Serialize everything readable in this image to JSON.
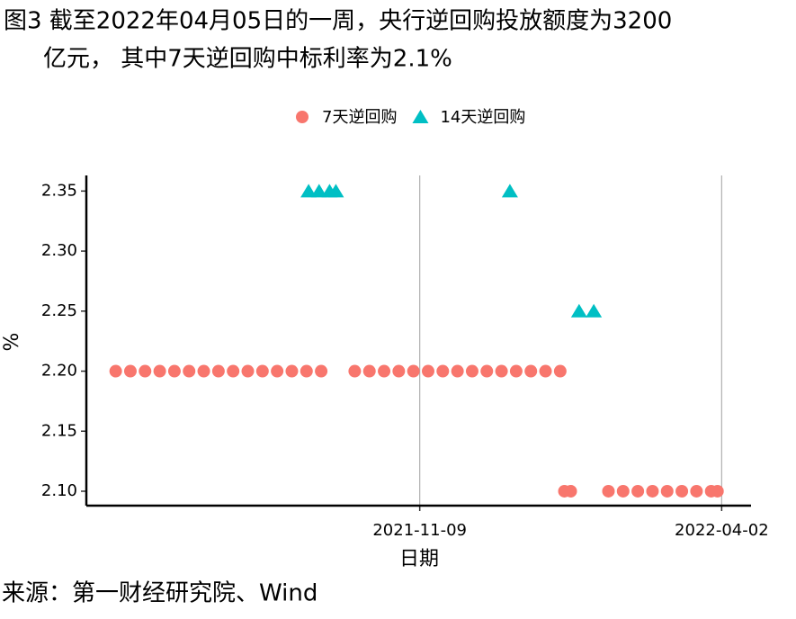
{
  "chart_data": {
    "type": "scatter",
    "title": [
      "图3  截至2022年04月05日的一周，央行逆回购投放额度为3200",
      "亿元， 其中7天逆回购中标利率为2.1%"
    ],
    "xlabel": "日期",
    "ylabel": "%",
    "source": "来源：第一财经研究院、Wind",
    "legend": "top",
    "xlim": [
      "2021-06-03",
      "2022-04-16"
    ],
    "xticks": [
      "2021-11-09",
      "2022-04-02"
    ],
    "ylim": [
      2.088,
      2.363
    ],
    "yticks": [
      {
        "value": 2.1,
        "label": "2.10"
      },
      2.15,
      {
        "value": 2.2,
        "label": "2.20"
      },
      2.25,
      {
        "value": 2.3,
        "label": "2.30"
      },
      2.35
    ],
    "grid": "x",
    "series": [
      {
        "name": "7天逆回购",
        "color": "#F8766D",
        "marker": "circle",
        "x": [
          "2021-06-17",
          "2021-06-24",
          "2021-07-01",
          "2021-07-08",
          "2021-07-15",
          "2021-07-22",
          "2021-07-29",
          "2021-08-05",
          "2021-08-12",
          "2021-08-19",
          "2021-08-26",
          "2021-09-02",
          "2021-09-09",
          "2021-09-16",
          "2021-09-23",
          "2021-10-09",
          "2021-10-16",
          "2021-10-23",
          "2021-10-30",
          "2021-11-06",
          "2021-11-13",
          "2021-11-20",
          "2021-11-27",
          "2021-12-04",
          "2021-12-11",
          "2021-12-18",
          "2021-12-25",
          "2022-01-01",
          "2022-01-08",
          "2022-01-15",
          "2022-01-17",
          "2022-01-20",
          "2022-02-07",
          "2022-02-14",
          "2022-02-21",
          "2022-02-28",
          "2022-03-07",
          "2022-03-14",
          "2022-03-21",
          "2022-03-28",
          "2022-03-31"
        ],
        "values": [
          2.2,
          2.2,
          2.2,
          2.2,
          2.2,
          2.2,
          2.2,
          2.2,
          2.2,
          2.2,
          2.2,
          2.2,
          2.2,
          2.2,
          2.2,
          2.2,
          2.2,
          2.2,
          2.2,
          2.2,
          2.2,
          2.2,
          2.2,
          2.2,
          2.2,
          2.2,
          2.2,
          2.2,
          2.2,
          2.2,
          2.1,
          2.1,
          2.1,
          2.1,
          2.1,
          2.1,
          2.1,
          2.1,
          2.1,
          2.1,
          2.1
        ]
      },
      {
        "name": "14天逆回购",
        "color": "#00BFC4",
        "marker": "triangle",
        "x": [
          "2021-09-17",
          "2021-09-22",
          "2021-09-27",
          "2021-09-30",
          "2021-12-22",
          "2022-01-24",
          "2022-01-31"
        ],
        "values": [
          2.35,
          2.35,
          2.35,
          2.35,
          2.35,
          2.25,
          2.25
        ]
      }
    ]
  }
}
